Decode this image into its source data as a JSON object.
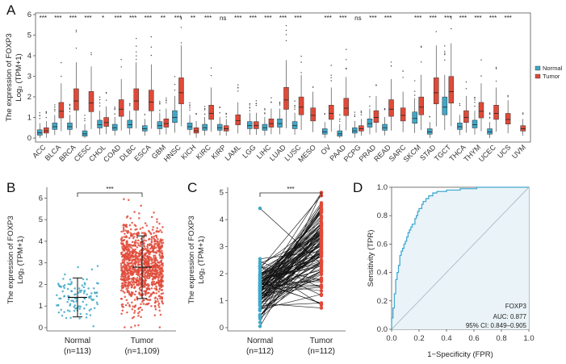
{
  "figure": {
    "panel_letters": [
      "A",
      "B",
      "C",
      "D"
    ]
  },
  "colors": {
    "normal": "#3ea8c8",
    "tumor": "#e04a38",
    "roc_line": "#43a9d2",
    "diagonal": "#a9bcc8"
  },
  "chart_data": [
    {
      "panel": "A",
      "type": "box",
      "ylabel_line1": "The expression of FOXP3",
      "ylabel_line2": "Log₂ (TPM+1)",
      "ylim": [
        0,
        6
      ],
      "yticks": [
        "0",
        "1",
        "2",
        "3",
        "4",
        "5",
        "6"
      ],
      "legend": [
        "Normal",
        "Tumor"
      ],
      "categories": [
        "ACC",
        "BLCA",
        "BRCA",
        "CESC",
        "CHOL",
        "COAD",
        "DLBC",
        "ESCA",
        "GBM",
        "HNSC",
        "KICH",
        "KIRC",
        "KIRP",
        "LAML",
        "LGG",
        "LIHC",
        "LUAD",
        "LUSC",
        "MESO",
        "OV",
        "PAAD",
        "PCPG",
        "PRAD",
        "READ",
        "SARC",
        "SKCM",
        "STAD",
        "TGCT",
        "THCA",
        "THYM",
        "UCEC",
        "UCS",
        "UVM"
      ],
      "significance": [
        "***",
        "***",
        "***",
        "***",
        "*",
        "***",
        "***",
        "***",
        "**",
        "***",
        "**",
        "***",
        "ns",
        "***",
        "***",
        "***",
        "***",
        "***",
        "",
        "***",
        "***",
        "ns",
        "***",
        "***",
        "",
        "***",
        "***",
        "***",
        "***",
        "***",
        "***",
        "***",
        ""
      ],
      "normal_medians": [
        0.25,
        0.55,
        0.55,
        0.2,
        0.65,
        0.5,
        0.65,
        0.45,
        0.6,
        1.0,
        0.55,
        0.5,
        0.5,
        null,
        0.6,
        0.5,
        0.7,
        0.6,
        null,
        0.3,
        0.2,
        0.35,
        0.7,
        0.5,
        null,
        0.95,
        0.3,
        1.5,
        0.55,
        0.65,
        0.3,
        null,
        null
      ],
      "tumor_medians": [
        0.35,
        1.3,
        1.8,
        1.7,
        0.75,
        1.4,
        1.8,
        1.75,
        0.7,
        2.2,
        0.35,
        1.2,
        0.45,
        0.85,
        0.6,
        0.7,
        1.85,
        1.5,
        1.1,
        1.2,
        1.45,
        0.45,
        1.0,
        1.4,
        1.1,
        1.5,
        2.2,
        2.25,
        1.0,
        1.3,
        1.2,
        0.9,
        0.45
      ]
    },
    {
      "panel": "B",
      "type": "scatter",
      "ylabel_line1": "The expression of FOXP3",
      "ylabel_line2": "Log₂ (TPM+1)",
      "ylim": [
        0,
        6.5
      ],
      "yticks": [
        "0",
        "1",
        "2",
        "3",
        "4",
        "5",
        "6"
      ],
      "groups": [
        {
          "name": "Normal",
          "n_label": "(n=113)",
          "mean": 1.4,
          "sd_low": 0.5,
          "sd_high": 2.3
        },
        {
          "name": "Tumor",
          "n_label": "(n=1,109)",
          "mean": 2.8,
          "sd_low": 1.35,
          "sd_high": 4.25
        }
      ],
      "significance": "***"
    },
    {
      "panel": "C",
      "type": "paired",
      "ylabel_line1": "The expression of FOXP3",
      "ylabel_line2": "Log₂ (TPM+1)",
      "ylim": [
        0,
        5.2
      ],
      "yticks": [
        "0",
        "1",
        "2",
        "3",
        "4",
        "5"
      ],
      "groups": [
        {
          "name": "Normal",
          "n_label": "(n=112)"
        },
        {
          "name": "Tumor",
          "n_label": "(n=112)"
        }
      ],
      "significance": "***"
    },
    {
      "panel": "D",
      "type": "line",
      "xlabel": "1−Specificity (FPR)",
      "ylabel": "Sensitivity (TPR)",
      "xticks": [
        "0.0",
        "0.2",
        "0.4",
        "0.6",
        "0.8",
        "1.0"
      ],
      "yticks": [
        "0.0",
        "0.2",
        "0.4",
        "0.6",
        "0.8",
        "1.0"
      ],
      "series": [
        {
          "name": "FOXP3",
          "x": [
            0,
            0,
            0.01,
            0.01,
            0.02,
            0.02,
            0.03,
            0.03,
            0.04,
            0.05,
            0.06,
            0.06,
            0.07,
            0.08,
            0.09,
            0.1,
            0.11,
            0.12,
            0.13,
            0.14,
            0.15,
            0.17,
            0.18,
            0.19,
            0.2,
            0.22,
            0.23,
            0.25,
            0.27,
            0.3,
            0.33,
            0.36,
            0.4,
            0.45,
            0.5,
            0.56,
            0.62,
            0.7,
            0.8,
            1.0
          ],
          "y": [
            0,
            0.08,
            0.1,
            0.15,
            0.2,
            0.25,
            0.3,
            0.35,
            0.4,
            0.45,
            0.48,
            0.52,
            0.55,
            0.57,
            0.6,
            0.62,
            0.65,
            0.68,
            0.7,
            0.72,
            0.74,
            0.78,
            0.8,
            0.83,
            0.85,
            0.88,
            0.9,
            0.92,
            0.94,
            0.96,
            0.97,
            0.97,
            0.98,
            0.98,
            0.99,
            0.99,
            1.0,
            1.0,
            1.0,
            1.0
          ]
        }
      ],
      "annotation": {
        "label": "FOXP3",
        "auc": "AUC: 0.877",
        "ci": "95% CI: 0.849–0.905"
      }
    }
  ]
}
